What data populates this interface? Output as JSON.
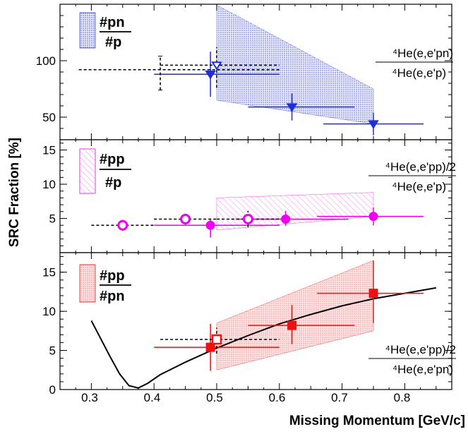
{
  "figure": {
    "ylabel": "SRC Fraction [%]",
    "xlabel": "Missing Momentum [GeV/c]",
    "x_ticks": [
      "0.3",
      "0.4",
      "0.5",
      "0.6",
      "0.7",
      "0.8"
    ]
  },
  "colors": {
    "blue": "#1f2fd6",
    "magenta": "#ee00ee",
    "red": "#ee1111",
    "black": "#000000"
  },
  "chart_data": [
    {
      "type": "scatter",
      "panel": "top",
      "legend_num": "#pn",
      "legend_den": "#p",
      "formula_num": "⁴He(e,e'pn)",
      "formula_den": "⁴He(e,e'p)",
      "y_ticks": [
        "50",
        "100"
      ],
      "ylim": [
        30,
        150
      ],
      "xlim": [
        0.25,
        0.875
      ],
      "band": {
        "x0": 0.5,
        "x1": 0.75,
        "lo_start": 65,
        "hi_start": 162,
        "lo_end": 44,
        "hi_end": 75
      },
      "series": [
        {
          "marker": "triangle-down-filled",
          "color": "blue",
          "points": [
            {
              "x": 0.49,
              "y": 88,
              "xerr": [
                0.09,
                0.11
              ],
              "yerr": [
                20,
                20
              ]
            },
            {
              "x": 0.62,
              "y": 59,
              "xerr": [
                0.07,
                0.1
              ],
              "yerr": [
                12,
                12
              ]
            },
            {
              "x": 0.75,
              "y": 44,
              "xerr": [
                0.08,
                0.08
              ],
              "yerr": [
                10,
                10
              ]
            }
          ]
        },
        {
          "marker": "triangle-down-open",
          "color": "blue",
          "line": "dashed",
          "points": [
            {
              "x": 0.5,
              "y": 96,
              "xerr": [
                0.09,
                0.1
              ],
              "yerr": [
                20,
                16
              ]
            }
          ]
        },
        {
          "marker": "none",
          "color": "black",
          "line": "dashed",
          "points": [
            {
              "x": 0.41,
              "y": 92,
              "xerr": [
                0.13,
                0.19
              ],
              "yerr": [
                18,
                12
              ]
            }
          ]
        }
      ]
    },
    {
      "type": "scatter",
      "panel": "middle",
      "legend_num": "#pp",
      "legend_den": "#p",
      "formula_num": "⁴He(e,e'pp)/2",
      "formula_den": "⁴He(e,e'p)",
      "y_ticks": [
        "5",
        "10",
        "15"
      ],
      "ylim": [
        0,
        16.5
      ],
      "xlim": [
        0.25,
        0.875
      ],
      "band": {
        "x0": 0.5,
        "x1": 0.75,
        "lo_start": 3.3,
        "hi_start": 8.0,
        "lo_end": 5.3,
        "hi_end": 8.8
      },
      "series": [
        {
          "marker": "circle-filled",
          "color": "magenta",
          "points": [
            {
              "x": 0.49,
              "y": 4.0,
              "xerr": [
                0.09,
                0.11
              ],
              "yerr": [
                1.8,
                1.0
              ]
            },
            {
              "x": 0.61,
              "y": 4.9,
              "xerr": [
                0.08,
                0.1
              ],
              "yerr": [
                1.0,
                1.2
              ]
            },
            {
              "x": 0.75,
              "y": 5.3,
              "xerr": [
                0.09,
                0.08
              ],
              "yerr": [
                1.3,
                1.3
              ]
            }
          ]
        },
        {
          "marker": "circle-open",
          "color": "magenta",
          "line": "dashed",
          "points": [
            {
              "x": 0.35,
              "y": 4.0,
              "xerr": [
                0.05,
                0.05
              ],
              "yerr": [
                0.8,
                0.8
              ]
            },
            {
              "x": 0.45,
              "y": 4.9,
              "xerr": [
                0.05,
                0.05
              ],
              "yerr": [
                0.8,
                0.8
              ]
            },
            {
              "x": 0.55,
              "y": 4.9,
              "xerr": [
                0.05,
                0.05
              ],
              "yerr": [
                1.2,
                1.2
              ]
            }
          ]
        }
      ]
    },
    {
      "type": "scatter",
      "panel": "bottom",
      "legend_num": "#pp",
      "legend_den": "#pn",
      "formula_num": "⁴He(e,e'pp)/2",
      "formula_den": "⁴He(e,e'pn)",
      "y_ticks": [
        "0",
        "5",
        "10",
        "15"
      ],
      "ylim": [
        0,
        17.5
      ],
      "xlim": [
        0.25,
        0.875
      ],
      "band": {
        "x0": 0.5,
        "x1": 0.75,
        "lo_start": 2.5,
        "hi_start": 8.5,
        "lo_end": 7.5,
        "hi_end": 16.5
      },
      "series": [
        {
          "marker": "square-filled",
          "color": "red",
          "points": [
            {
              "x": 0.49,
              "y": 5.4,
              "xerr": [
                0.09,
                0.11
              ],
              "yerr": [
                3.0,
                3.0
              ]
            },
            {
              "x": 0.62,
              "y": 8.2,
              "xerr": [
                0.07,
                0.1
              ],
              "yerr": [
                2.4,
                2.6
              ]
            },
            {
              "x": 0.75,
              "y": 12.3,
              "xerr": [
                0.09,
                0.08
              ],
              "yerr": [
                3.8,
                4.2
              ]
            }
          ]
        },
        {
          "marker": "square-open",
          "color": "red",
          "line": "dashed",
          "points": [
            {
              "x": 0.5,
              "y": 6.4,
              "xerr": [
                0.09,
                0.1
              ],
              "yerr": [
                1.8,
                1.5
              ]
            }
          ]
        }
      ],
      "curve": {
        "x": [
          0.3,
          0.315,
          0.33,
          0.345,
          0.36,
          0.375,
          0.39,
          0.41,
          0.45,
          0.5,
          0.55,
          0.6,
          0.65,
          0.7,
          0.75,
          0.8,
          0.85
        ],
        "y": [
          8.8,
          6.5,
          4.2,
          2.0,
          0.5,
          0.2,
          0.8,
          1.9,
          3.5,
          5.3,
          6.9,
          8.4,
          9.6,
          10.7,
          11.6,
          12.3,
          13.0
        ]
      }
    }
  ]
}
